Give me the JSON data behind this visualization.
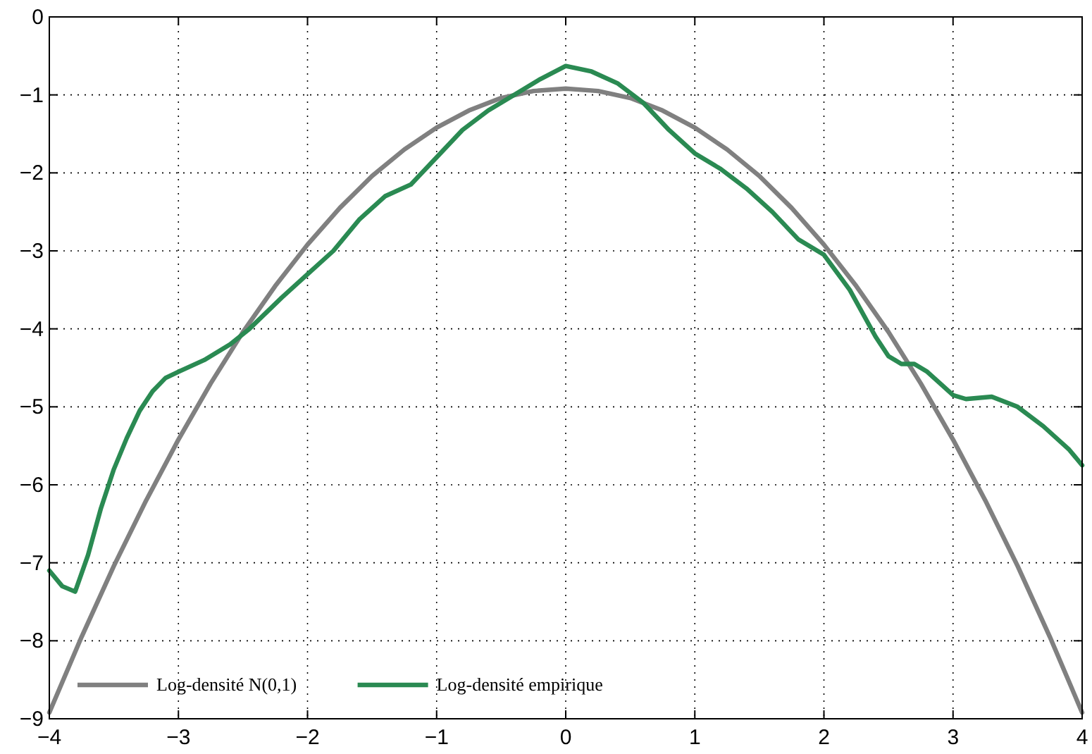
{
  "chart_data": {
    "type": "line",
    "xlim": [
      -4,
      4
    ],
    "ylim": [
      -9,
      0
    ],
    "xticks": [
      -4,
      -3,
      -2,
      -1,
      0,
      1,
      2,
      3,
      4
    ],
    "yticks": [
      -9,
      -8,
      -7,
      -6,
      -5,
      -4,
      -3,
      -2,
      -1,
      0
    ],
    "grid": true,
    "legend": "bottom",
    "line_style": "solid",
    "marker": "none",
    "series": [
      {
        "name": "Log-densité N(0,1)",
        "color": "#808080",
        "x": [
          -4,
          -3.75,
          -3.5,
          -3.25,
          -3,
          -2.75,
          -2.5,
          -2.25,
          -2,
          -1.75,
          -1.5,
          -1.25,
          -1,
          -0.75,
          -0.5,
          -0.25,
          0,
          0.25,
          0.5,
          0.75,
          1,
          1.25,
          1.5,
          1.75,
          2,
          2.25,
          2.5,
          2.75,
          3,
          3.25,
          3.5,
          3.75,
          4
        ],
        "values": [
          -8.92,
          -7.95,
          -7.04,
          -6.2,
          -5.42,
          -4.7,
          -4.04,
          -3.45,
          -2.92,
          -2.45,
          -2.04,
          -1.7,
          -1.42,
          -1.2,
          -1.04,
          -0.95,
          -0.92,
          -0.95,
          -1.04,
          -1.2,
          -1.42,
          -1.7,
          -2.04,
          -2.45,
          -2.92,
          -3.45,
          -4.04,
          -4.7,
          -5.42,
          -6.2,
          -7.04,
          -7.95,
          -8.92
        ]
      },
      {
        "name": "Log-densité empirique",
        "color": "#2a8a52",
        "x": [
          -4,
          -3.9,
          -3.8,
          -3.7,
          -3.6,
          -3.5,
          -3.4,
          -3.3,
          -3.2,
          -3.1,
          -3,
          -2.8,
          -2.6,
          -2.45,
          -2.2,
          -2,
          -1.8,
          -1.6,
          -1.4,
          -1.2,
          -1,
          -0.8,
          -0.6,
          -0.4,
          -0.2,
          0,
          0.2,
          0.4,
          0.6,
          0.8,
          1,
          1.2,
          1.4,
          1.6,
          1.8,
          2,
          2.2,
          2.4,
          2.5,
          2.6,
          2.7,
          2.8,
          2.9,
          3,
          3.1,
          3.3,
          3.5,
          3.7,
          3.9,
          4
        ],
        "values": [
          -7.1,
          -7.3,
          -7.37,
          -6.9,
          -6.3,
          -5.8,
          -5.4,
          -5.05,
          -4.8,
          -4.63,
          -4.55,
          -4.4,
          -4.2,
          -4,
          -3.6,
          -3.3,
          -3,
          -2.6,
          -2.3,
          -2.15,
          -1.8,
          -1.45,
          -1.2,
          -1,
          -0.8,
          -0.63,
          -0.7,
          -0.85,
          -1.1,
          -1.45,
          -1.75,
          -1.95,
          -2.2,
          -2.5,
          -2.85,
          -3.05,
          -3.5,
          -4.1,
          -4.35,
          -4.45,
          -4.45,
          -4.55,
          -4.7,
          -4.85,
          -4.9,
          -4.87,
          -5,
          -5.25,
          -5.55,
          -5.75
        ]
      }
    ]
  }
}
